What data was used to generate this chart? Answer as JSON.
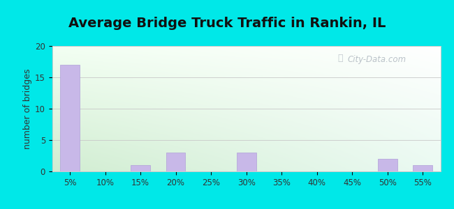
{
  "title": "Average Bridge Truck Traffic in Rankin, IL",
  "categories": [
    "5%",
    "10%",
    "15%",
    "20%",
    "25%",
    "30%",
    "35%",
    "40%",
    "45%",
    "50%",
    "55%"
  ],
  "values": [
    17,
    0,
    1,
    3,
    0,
    3,
    0,
    0,
    0,
    2,
    1
  ],
  "bar_color": "#c8b8e8",
  "bar_edge_color": "#b0a0d8",
  "ylabel": "number of bridges",
  "ylim": [
    0,
    20
  ],
  "yticks": [
    0,
    5,
    10,
    15,
    20
  ],
  "title_fontsize": 14,
  "label_fontsize": 9,
  "tick_fontsize": 8.5,
  "background_outer": "#00e8e8",
  "watermark_text": "City-Data.com",
  "watermark_color": "#b0b8c0"
}
